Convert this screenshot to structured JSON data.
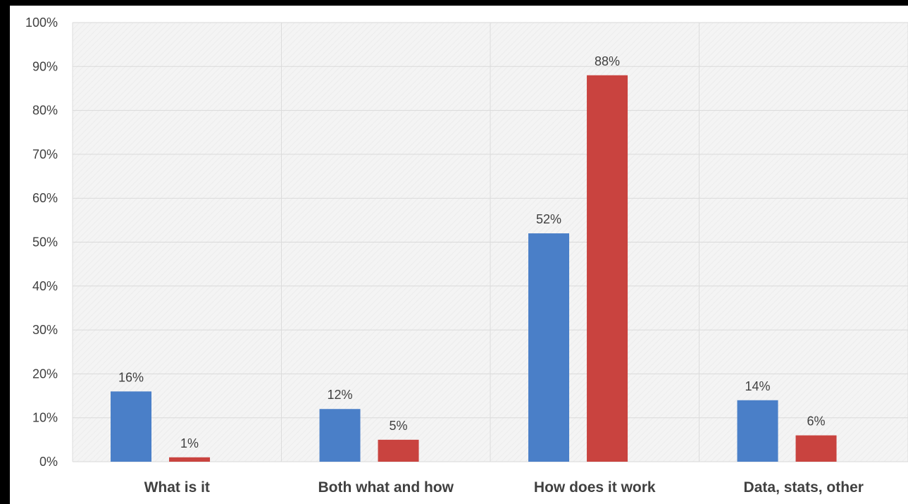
{
  "chart_data": {
    "type": "bar",
    "categories": [
      "What is it",
      "Both what and how",
      "How does it work",
      "Data, stats, other"
    ],
    "series": [
      {
        "values": [
          16,
          12,
          52,
          14
        ],
        "labels": [
          "16%",
          "12%",
          "52%",
          "14%"
        ],
        "color": "#4a7fc8"
      },
      {
        "values": [
          1,
          5,
          88,
          6
        ],
        "labels": [
          "1%",
          "5%",
          "88%",
          "6%"
        ],
        "color": "#c9433f"
      }
    ],
    "yticks": [
      "0%",
      "10%",
      "20%",
      "30%",
      "40%",
      "50%",
      "60%",
      "70%",
      "80%",
      "90%",
      "100%"
    ],
    "ylim": [
      0,
      100
    ],
    "grid": true,
    "legend": "none",
    "title": "",
    "xlabel": "",
    "ylabel": ""
  }
}
